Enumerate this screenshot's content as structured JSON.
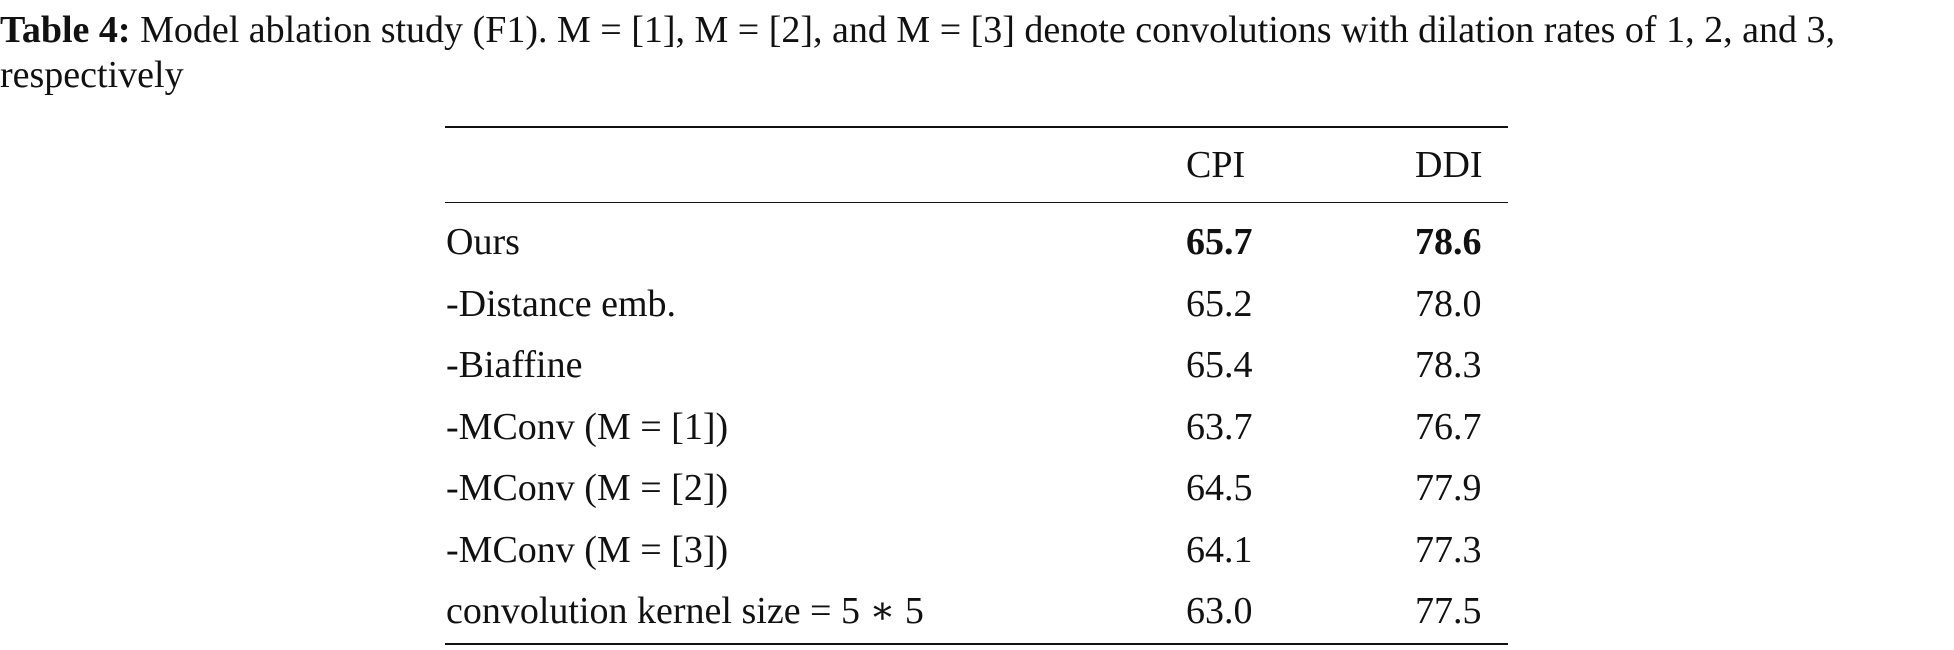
{
  "caption": {
    "label": "Table 4:",
    "text": "Model ablation study (F1). M = [1], M = [2], and M = [3] denote convolutions with dilation rates of 1, 2, and 3, respectively"
  },
  "table": {
    "columns": [
      "CPI",
      "DDI"
    ],
    "rows": [
      [
        "Ours",
        "65.7",
        "78.6"
      ],
      [
        "-Distance emb.",
        "65.2",
        "78.0"
      ],
      [
        "-Biaffine",
        "65.4",
        "78.3"
      ],
      [
        "-MConv (M = [1])",
        "63.7",
        "76.7"
      ],
      [
        "-MConv (M = [2])",
        "64.5",
        "77.9"
      ],
      [
        "-MConv (M = [3])",
        "64.1",
        "77.3"
      ],
      [
        "convolution kernel size = 5 ∗ 5",
        "63.0",
        "77.5"
      ]
    ]
  }
}
